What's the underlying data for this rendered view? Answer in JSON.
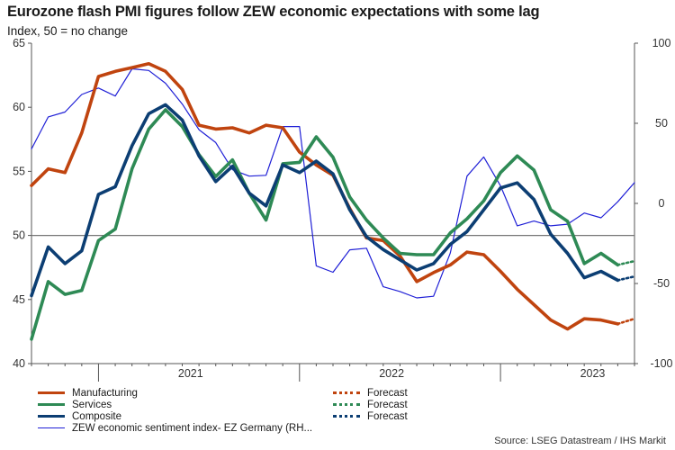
{
  "header": {
    "title": "Eurozone flash PMI figures follow ZEW economic expectations with some lag",
    "subtitle": "Index, 50 = no change"
  },
  "source": "Source: LSEG Datastream / IHS Markit",
  "colors": {
    "manufacturing": "#c0440f",
    "services": "#2e8a55",
    "composite": "#0c3e73",
    "zew": "#1f1fd6",
    "axis": "#555555",
    "grid50": "#777777"
  },
  "legend": {
    "manufacturing": "Manufacturing",
    "services": "Services",
    "composite": "Composite",
    "zew": "ZEW economic sentiment index- EZ Germany (RH...",
    "forecast1": "Forecast",
    "forecast2": "Forecast",
    "forecast3": "Forecast"
  },
  "chart_data": {
    "type": "line",
    "x_start": "2020-09",
    "x_end": "2023-09",
    "x_tick_labels": [
      "2021",
      "2022",
      "2023"
    ],
    "y_left": {
      "ticks": [
        40,
        45,
        50,
        55,
        60,
        65
      ],
      "ylim": [
        40,
        65
      ],
      "reference_line": 50
    },
    "y_right": {
      "ticks": [
        -100,
        -50,
        0,
        50,
        100
      ],
      "ylim": [
        -100,
        100
      ]
    },
    "grid": false,
    "legend_position": "bottom",
    "series": [
      {
        "name": "Manufacturing",
        "axis": "left",
        "style": "solid",
        "start": "2020-09",
        "values": [
          53.9,
          55.2,
          54.9,
          58.0,
          62.4,
          62.8,
          63.1,
          63.4,
          62.8,
          61.4,
          58.6,
          58.3,
          58.4,
          58.0,
          58.6,
          58.4,
          56.5,
          55.5,
          54.7,
          52.1,
          49.8,
          49.6,
          48.4,
          46.4,
          47.1,
          47.7,
          48.7,
          48.5,
          47.2,
          45.8,
          44.6,
          43.4,
          42.7,
          43.5,
          43.4,
          43.1
        ],
        "forecast_end": 43.5
      },
      {
        "name": "Services",
        "axis": "left",
        "style": "solid",
        "start": "2020-09",
        "values": [
          41.9,
          46.4,
          45.4,
          45.7,
          49.6,
          50.5,
          55.2,
          58.3,
          59.8,
          58.5,
          56.3,
          54.6,
          55.9,
          53.3,
          51.2,
          55.6,
          55.7,
          57.7,
          56.1,
          53.0,
          51.2,
          49.8,
          48.6,
          48.5,
          48.5,
          50.2,
          51.3,
          52.7,
          54.9,
          56.2,
          55.1,
          52.0,
          51.1,
          47.8,
          48.6,
          47.7
        ],
        "forecast_end": 48.0
      },
      {
        "name": "Composite",
        "axis": "left",
        "style": "solid",
        "start": "2020-09",
        "values": [
          45.3,
          49.1,
          47.8,
          48.8,
          53.2,
          53.8,
          57.0,
          59.5,
          60.2,
          59.0,
          56.2,
          54.2,
          55.4,
          53.3,
          52.3,
          55.5,
          54.9,
          55.8,
          54.8,
          52.0,
          49.9,
          48.9,
          48.1,
          47.3,
          47.8,
          49.3,
          50.3,
          52.0,
          53.7,
          54.1,
          52.8,
          50.1,
          48.6,
          46.7,
          47.2,
          46.5
        ],
        "forecast_end": 46.8
      },
      {
        "name": "ZEW economic sentiment index- EZ Germany (RH...",
        "axis": "right",
        "style": "solid",
        "start": "2020-09",
        "values": [
          34.0,
          54.0,
          57.0,
          68.0,
          72.0,
          67.0,
          84.0,
          83.0,
          75.0,
          62.0,
          46.0,
          38.0,
          21.0,
          17.0,
          17.5,
          48.0,
          48.0,
          -39.0,
          -43.0,
          -29.0,
          -28.0,
          -52.0,
          -55.0,
          -59.0,
          -58.0,
          -31.0,
          17.0,
          29.0,
          11.0,
          -14.0,
          -11.0,
          -14.0,
          -13.0,
          -6.0,
          -9.0,
          1.0,
          13.0
        ]
      }
    ]
  }
}
